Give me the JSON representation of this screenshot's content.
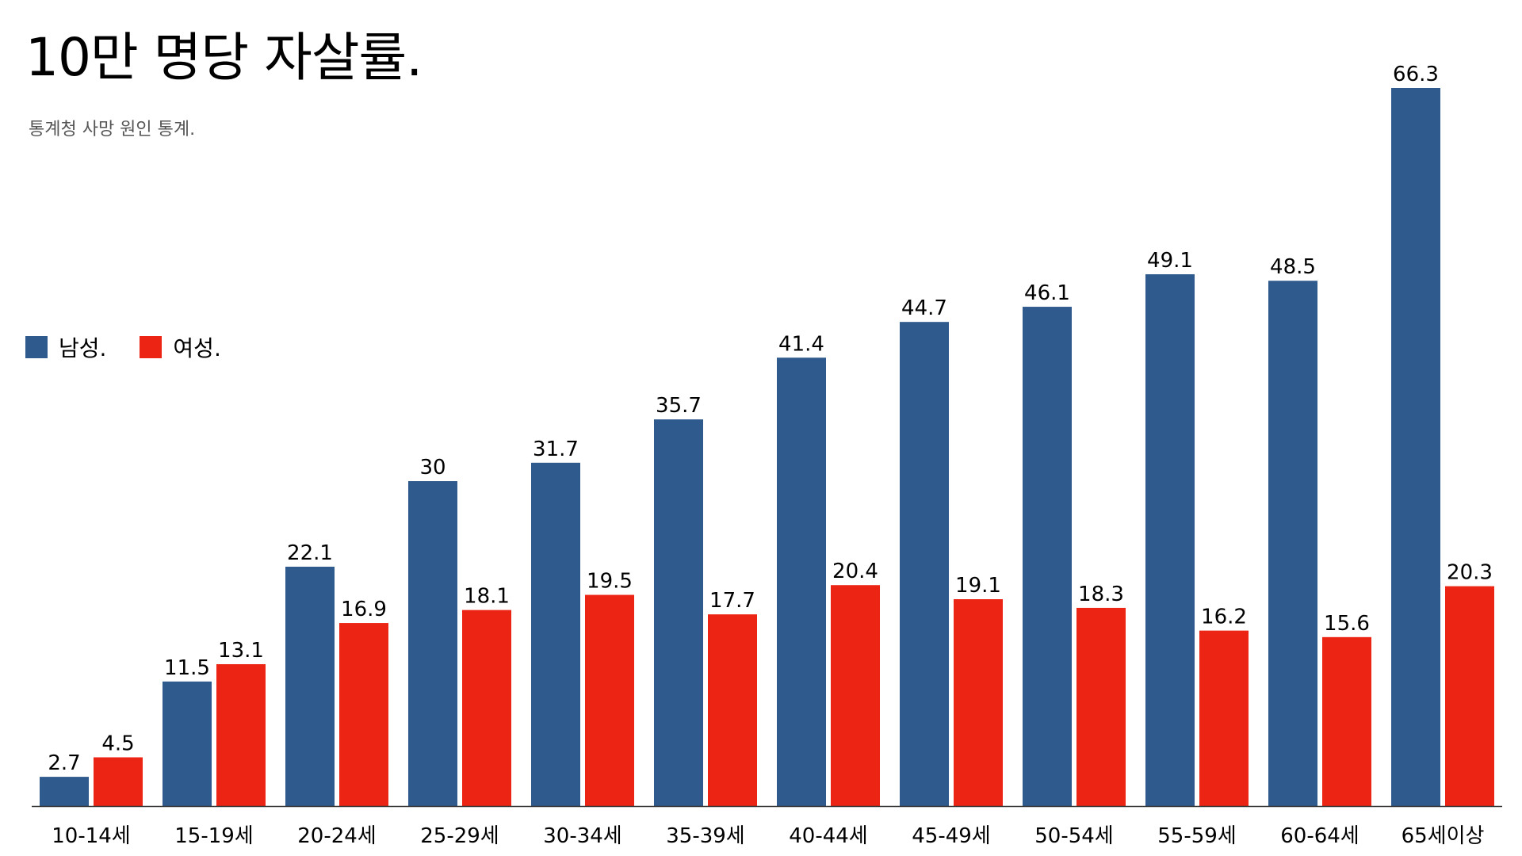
{
  "title": "10만 명당 자살률.",
  "subtitle": "통계청 사망 원인 통계.",
  "colors": {
    "male": "#2F5A8E",
    "female": "#EC2413",
    "axis": "#333333"
  },
  "chart_data": {
    "type": "bar",
    "title": "10만 명당 자살률.",
    "subtitle": "통계청 사망 원인 통계.",
    "categories": [
      "10-14세",
      "15-19세",
      "20-24세",
      "25-29세",
      "30-34세",
      "35-39세",
      "40-44세",
      "45-49세",
      "50-54세",
      "55-59세",
      "60-64세",
      "65세이상"
    ],
    "series": [
      {
        "name": "남성.",
        "color": "#2F5A8E",
        "values": [
          2.7,
          11.5,
          22.1,
          30,
          31.7,
          35.7,
          41.4,
          44.7,
          46.1,
          49.1,
          48.5,
          66.3
        ]
      },
      {
        "name": "여성.",
        "color": "#EC2413",
        "values": [
          4.5,
          13.1,
          16.9,
          18.1,
          19.5,
          17.7,
          20.4,
          19.1,
          18.3,
          16.2,
          15.6,
          20.3
        ]
      }
    ],
    "xlabel": "",
    "ylabel": "",
    "ylim": [
      0,
      66.3
    ],
    "grid": false,
    "legend": "left-middle"
  }
}
